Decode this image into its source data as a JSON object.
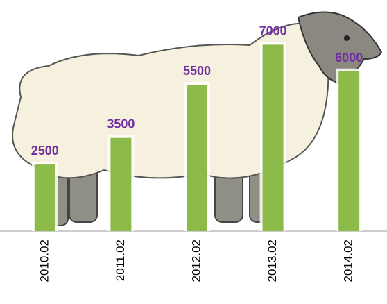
{
  "chart_data": {
    "type": "bar",
    "categories": [
      "2010.02",
      "2011.02",
      "2012.02",
      "2013.02",
      "2014.02"
    ],
    "values": [
      2500,
      3500,
      5500,
      7000,
      6000
    ],
    "color": "#8cbb4a",
    "label_color": "#7030a0",
    "ylim": [
      0,
      8000
    ]
  }
}
